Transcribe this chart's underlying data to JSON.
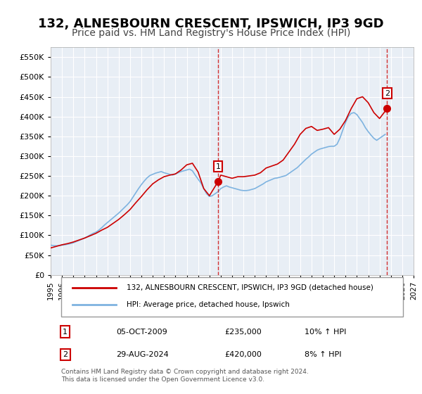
{
  "title": "132, ALNESBOURN CRESCENT, IPSWICH, IP3 9GD",
  "subtitle": "Price paid vs. HM Land Registry's House Price Index (HPI)",
  "title_fontsize": 13,
  "subtitle_fontsize": 10,
  "xlabel": "",
  "ylabel": "",
  "ylim": [
    0,
    575000
  ],
  "yticks": [
    0,
    50000,
    100000,
    150000,
    200000,
    250000,
    300000,
    350000,
    400000,
    450000,
    500000,
    550000
  ],
  "ytick_labels": [
    "£0",
    "£50K",
    "£100K",
    "£150K",
    "£200K",
    "£250K",
    "£300K",
    "£350K",
    "£400K",
    "£450K",
    "£500K",
    "£550K"
  ],
  "xlim_start": 1995,
  "xlim_end": 2027,
  "xticks": [
    1995,
    1996,
    1997,
    1998,
    1999,
    2000,
    2001,
    2002,
    2003,
    2004,
    2005,
    2006,
    2007,
    2008,
    2009,
    2010,
    2011,
    2012,
    2013,
    2014,
    2015,
    2016,
    2017,
    2018,
    2019,
    2020,
    2021,
    2022,
    2023,
    2024,
    2025,
    2026,
    2027
  ],
  "hpi_color": "#7EB3E0",
  "price_color": "#CC0000",
  "bg_color": "#E8EEF5",
  "plot_bg_color": "#E8EEF5",
  "grid_color": "#FFFFFF",
  "legend_label_price": "132, ALNESBOURN CRESCENT, IPSWICH, IP3 9GD (detached house)",
  "legend_label_hpi": "HPI: Average price, detached house, Ipswich",
  "sale1_year": 2009.75,
  "sale1_price": 235000,
  "sale1_label": "1",
  "sale1_date": "05-OCT-2009",
  "sale1_amount": "£235,000",
  "sale1_hpi": "10% ↑ HPI",
  "sale2_year": 2024.67,
  "sale2_price": 420000,
  "sale2_label": "2",
  "sale2_date": "29-AUG-2024",
  "sale2_amount": "£420,000",
  "sale2_hpi": "8% ↑ HPI",
  "vline1_color": "#CC0000",
  "vline2_color": "#CC0000",
  "footer_text": "Contains HM Land Registry data © Crown copyright and database right 2024.\nThis data is licensed under the Open Government Licence v3.0.",
  "hpi_data_years": [
    1995.0,
    1995.25,
    1995.5,
    1995.75,
    1996.0,
    1996.25,
    1996.5,
    1996.75,
    1997.0,
    1997.25,
    1997.5,
    1997.75,
    1998.0,
    1998.25,
    1998.5,
    1998.75,
    1999.0,
    1999.25,
    1999.5,
    1999.75,
    2000.0,
    2000.25,
    2000.5,
    2000.75,
    2001.0,
    2001.25,
    2001.5,
    2001.75,
    2002.0,
    2002.25,
    2002.5,
    2002.75,
    2003.0,
    2003.25,
    2003.5,
    2003.75,
    2004.0,
    2004.25,
    2004.5,
    2004.75,
    2005.0,
    2005.25,
    2005.5,
    2005.75,
    2006.0,
    2006.25,
    2006.5,
    2006.75,
    2007.0,
    2007.25,
    2007.5,
    2007.75,
    2008.0,
    2008.25,
    2008.5,
    2008.75,
    2009.0,
    2009.25,
    2009.5,
    2009.75,
    2010.0,
    2010.25,
    2010.5,
    2010.75,
    2011.0,
    2011.25,
    2011.5,
    2011.75,
    2012.0,
    2012.25,
    2012.5,
    2012.75,
    2013.0,
    2013.25,
    2013.5,
    2013.75,
    2014.0,
    2014.25,
    2014.5,
    2014.75,
    2015.0,
    2015.25,
    2015.5,
    2015.75,
    2016.0,
    2016.25,
    2016.5,
    2016.75,
    2017.0,
    2017.25,
    2017.5,
    2017.75,
    2018.0,
    2018.25,
    2018.5,
    2018.75,
    2019.0,
    2019.25,
    2019.5,
    2019.75,
    2020.0,
    2020.25,
    2020.5,
    2020.75,
    2021.0,
    2021.25,
    2021.5,
    2021.75,
    2022.0,
    2022.25,
    2022.5,
    2022.75,
    2023.0,
    2023.25,
    2023.5,
    2023.75,
    2024.0,
    2024.25,
    2024.5
  ],
  "hpi_data_values": [
    75000,
    74000,
    73500,
    74000,
    75000,
    76000,
    77500,
    79000,
    81000,
    84000,
    87000,
    90000,
    93000,
    97000,
    101000,
    105000,
    108000,
    113000,
    119000,
    126000,
    132000,
    138000,
    144000,
    150000,
    156000,
    163000,
    170000,
    177000,
    185000,
    196000,
    207000,
    218000,
    228000,
    237000,
    245000,
    251000,
    254000,
    257000,
    259000,
    261000,
    258000,
    256000,
    254000,
    252000,
    255000,
    258000,
    261000,
    263000,
    265000,
    267000,
    263000,
    252000,
    242000,
    232000,
    218000,
    205000,
    198000,
    200000,
    205000,
    210000,
    218000,
    222000,
    225000,
    222000,
    220000,
    218000,
    216000,
    214000,
    213000,
    213000,
    214000,
    216000,
    218000,
    222000,
    226000,
    230000,
    235000,
    238000,
    241000,
    244000,
    245000,
    247000,
    249000,
    251000,
    256000,
    261000,
    266000,
    271000,
    278000,
    285000,
    292000,
    298000,
    305000,
    310000,
    315000,
    318000,
    320000,
    322000,
    324000,
    325000,
    325000,
    330000,
    345000,
    365000,
    385000,
    400000,
    408000,
    410000,
    405000,
    395000,
    385000,
    372000,
    362000,
    353000,
    345000,
    340000,
    345000,
    350000,
    355000
  ],
  "price_data_years": [
    1995.0,
    1995.5,
    1996.0,
    1996.5,
    1997.0,
    1997.5,
    1998.0,
    1998.5,
    1999.0,
    1999.5,
    2000.0,
    2000.5,
    2001.0,
    2001.5,
    2002.0,
    2002.5,
    2003.0,
    2003.5,
    2004.0,
    2004.5,
    2005.0,
    2005.5,
    2006.0,
    2006.5,
    2007.0,
    2007.5,
    2008.0,
    2008.5,
    2009.0,
    2009.75,
    2010.0,
    2010.5,
    2011.0,
    2011.5,
    2012.0,
    2013.0,
    2013.5,
    2014.0,
    2015.0,
    2015.5,
    2016.0,
    2016.5,
    2017.0,
    2017.5,
    2018.0,
    2018.5,
    2019.0,
    2019.5,
    2020.0,
    2020.5,
    2021.0,
    2021.5,
    2022.0,
    2022.5,
    2023.0,
    2023.5,
    2024.0,
    2024.67
  ],
  "price_data_values": [
    68000,
    72000,
    76000,
    79000,
    83000,
    88000,
    93000,
    99000,
    105000,
    113000,
    120000,
    130000,
    140000,
    152000,
    165000,
    182000,
    198000,
    215000,
    230000,
    240000,
    248000,
    252000,
    255000,
    265000,
    278000,
    282000,
    260000,
    218000,
    200000,
    235000,
    252000,
    248000,
    244000,
    248000,
    248000,
    252000,
    258000,
    270000,
    280000,
    290000,
    310000,
    330000,
    355000,
    370000,
    375000,
    365000,
    368000,
    372000,
    355000,
    368000,
    390000,
    420000,
    445000,
    450000,
    435000,
    410000,
    395000,
    420000
  ]
}
